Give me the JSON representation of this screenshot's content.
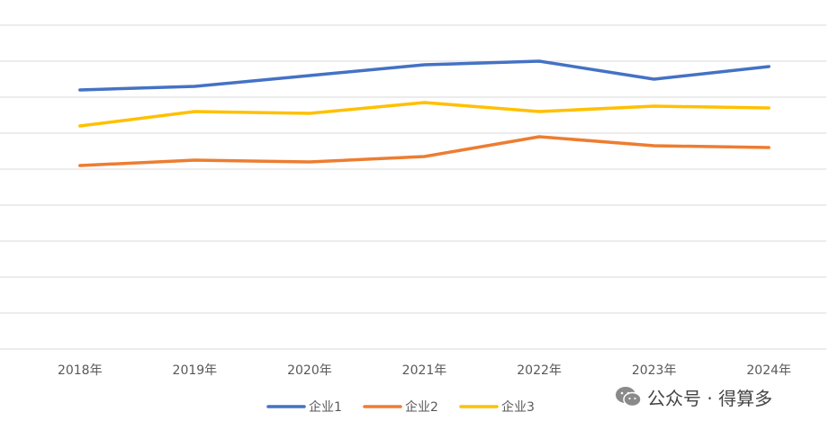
{
  "chart_data": {
    "type": "line",
    "categories": [
      "2018年",
      "2019年",
      "2020年",
      "2021年",
      "2022年",
      "2023年",
      "2024年"
    ],
    "series": [
      {
        "name": "企业1",
        "color": "#4472C4",
        "values": [
          72,
          73,
          76,
          79,
          80,
          75,
          78.5
        ]
      },
      {
        "name": "企业2",
        "color": "#ED7D31",
        "values": [
          51,
          52.5,
          52,
          53.5,
          59,
          56.5,
          56
        ]
      },
      {
        "name": "企业3",
        "color": "#FFC000",
        "values": [
          62,
          66,
          65.5,
          68.5,
          66,
          67.5,
          67
        ]
      }
    ],
    "ylim": [
      0,
      90
    ],
    "yticks": [
      0,
      10,
      20,
      30,
      40,
      50,
      60,
      70,
      80,
      90
    ],
    "ytick_labels_visible": false,
    "grid": true,
    "legend": "bottom"
  },
  "watermark": {
    "text": "公众号 · 得算多",
    "icon": "wechat-icon"
  }
}
